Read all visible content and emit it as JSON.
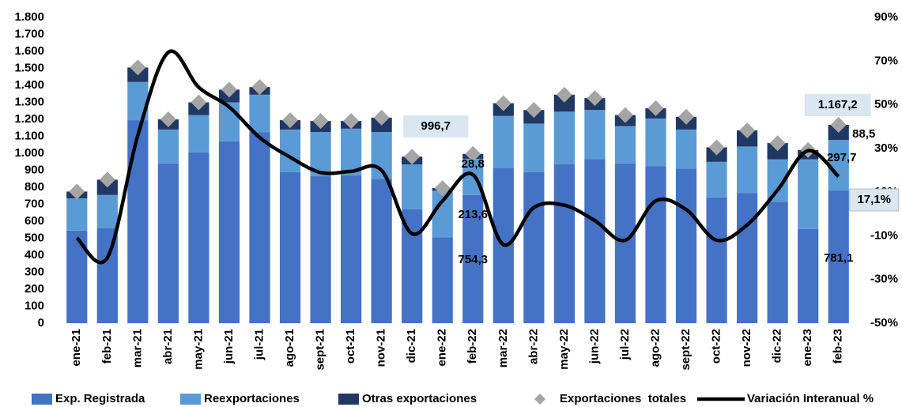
{
  "chart_data": {
    "type": "bar",
    "stacked": true,
    "categories": [
      "ene-21",
      "feb-21",
      "mar-21",
      "abr-21",
      "may-21",
      "jun-21",
      "jul-21",
      "ago-21",
      "sept-21",
      "oct-21",
      "nov-21",
      "dic-21",
      "ene-22",
      "feb-22",
      "mar-22",
      "abr-22",
      "may-22",
      "jun-22",
      "jul-22",
      "ago-22",
      "sept-22",
      "oct-22",
      "nov-22",
      "dic-22",
      "ene-23",
      "feb-23"
    ],
    "series": [
      {
        "name": "Exp. Registrada",
        "type": "bar",
        "color": "#4472c4",
        "values": [
          545,
          560,
          1195,
          940,
          1005,
          1070,
          1125,
          890,
          865,
          870,
          850,
          670,
          505,
          754.3,
          915,
          890,
          935,
          965,
          940,
          925,
          910,
          740,
          765,
          715,
          555,
          781.1
        ],
        "value_labels": [
          null,
          null,
          null,
          null,
          null,
          null,
          null,
          null,
          null,
          null,
          null,
          null,
          null,
          "754,3",
          null,
          null,
          null,
          null,
          null,
          null,
          null,
          null,
          null,
          null,
          null,
          "781,1"
        ]
      },
      {
        "name": "Reexportaciones",
        "type": "bar",
        "color": "#5b9bd5",
        "values": [
          190,
          195,
          225,
          200,
          220,
          230,
          220,
          250,
          260,
          275,
          275,
          265,
          275,
          213.6,
          305,
          285,
          310,
          290,
          220,
          280,
          230,
          210,
          275,
          250,
          410,
          297.7
        ],
        "value_labels": [
          null,
          null,
          null,
          null,
          null,
          null,
          null,
          null,
          null,
          null,
          null,
          null,
          null,
          "213,6",
          null,
          null,
          null,
          null,
          null,
          null,
          null,
          null,
          null,
          null,
          null,
          "297,7"
        ]
      },
      {
        "name": "Otras exportaciones",
        "type": "bar",
        "color": "#203864",
        "values": [
          40,
          90,
          85,
          60,
          75,
          75,
          45,
          55,
          65,
          45,
          85,
          45,
          15,
          28.8,
          75,
          80,
          100,
          70,
          65,
          60,
          75,
          85,
          95,
          95,
          55,
          88.5
        ],
        "value_labels": [
          null,
          null,
          null,
          null,
          null,
          null,
          null,
          null,
          null,
          null,
          null,
          null,
          null,
          "28,8",
          null,
          null,
          null,
          null,
          null,
          null,
          null,
          null,
          null,
          null,
          null,
          "88,5"
        ]
      },
      {
        "name": "Exportaciones  totales",
        "type": "scatter",
        "color": "#a5a5a5",
        "values": [
          775,
          845,
          1505,
          1200,
          1300,
          1375,
          1390,
          1195,
          1190,
          1190,
          1210,
          980,
          795,
          996.7,
          1295,
          1255,
          1345,
          1325,
          1225,
          1265,
          1215,
          1035,
          1135,
          1060,
          1020,
          1167.2
        ],
        "value_labels": [
          null,
          null,
          null,
          null,
          null,
          null,
          null,
          null,
          null,
          null,
          null,
          null,
          null,
          "996,7",
          null,
          null,
          null,
          null,
          null,
          null,
          null,
          null,
          null,
          null,
          null,
          "1.167,2"
        ]
      },
      {
        "name": "Variación Interanual %",
        "type": "line",
        "axis": "y2",
        "color": "#000000",
        "values": [
          -11,
          -20,
          36,
          74,
          58,
          49,
          35,
          26,
          19,
          19.5,
          20,
          -9,
          6,
          18,
          -14,
          3,
          4,
          -3,
          -12,
          6,
          2,
          -12,
          -5,
          11,
          29,
          17.1
        ],
        "value_labels": [
          null,
          null,
          null,
          null,
          null,
          null,
          null,
          null,
          null,
          null,
          null,
          null,
          null,
          null,
          null,
          null,
          null,
          null,
          null,
          null,
          null,
          null,
          null,
          null,
          null,
          "17,1%"
        ]
      }
    ],
    "ylim": [
      0,
      1800
    ],
    "yticks": [
      0,
      100,
      200,
      300,
      400,
      500,
      600,
      700,
      800,
      900,
      {
        "value": 1000,
        "label": "1.000"
      },
      {
        "value": 1100,
        "label": "1.100"
      },
      {
        "value": 1200,
        "label": "1.200"
      },
      {
        "value": 1300,
        "label": "1.300"
      },
      {
        "value": 1400,
        "label": "1.400"
      },
      {
        "value": 1500,
        "label": "1.500"
      },
      {
        "value": 1600,
        "label": "1.600"
      },
      {
        "value": 1700,
        "label": "1.700"
      },
      {
        "value": 1800,
        "label": "1.800"
      }
    ],
    "y2lim": [
      -50,
      90
    ],
    "y2ticks": [
      {
        "value": -50,
        "label": "-50%"
      },
      {
        "value": -30,
        "label": "-30%"
      },
      {
        "value": -10,
        "label": "-10%"
      },
      {
        "value": 10,
        "label": "10%"
      },
      {
        "value": 30,
        "label": "30%"
      },
      {
        "value": 50,
        "label": "50%"
      },
      {
        "value": 70,
        "label": "70%"
      },
      {
        "value": 90,
        "label": "90%"
      }
    ],
    "legend": "bottom",
    "grid": false
  }
}
